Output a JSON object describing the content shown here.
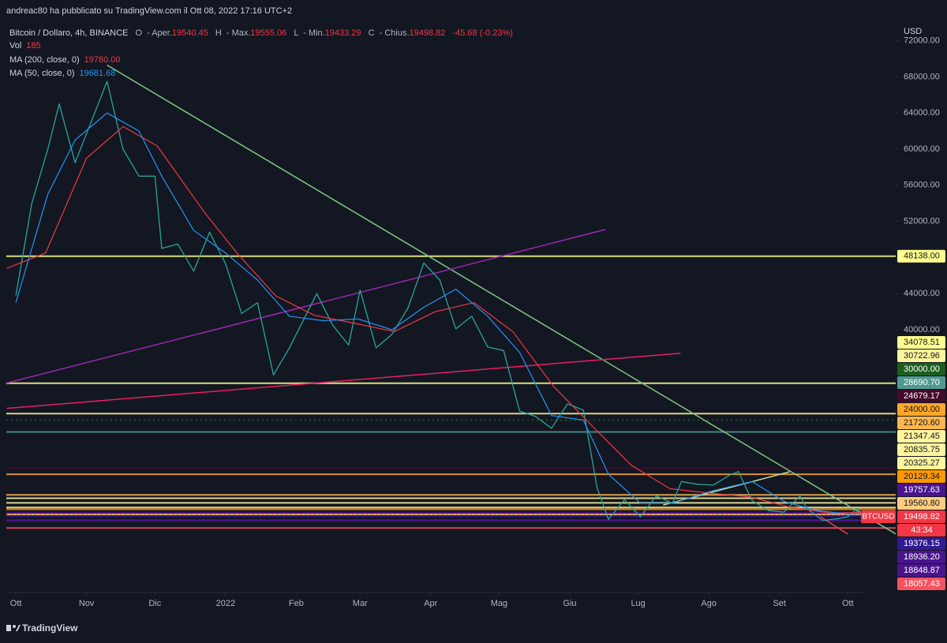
{
  "header": {
    "published": "andreac80 ha pubblicato su TradingView.com il Ott 08, 2022 17:16 UTC+2",
    "symbol": "Bitcoin / Dollaro, 4h, BINANCE",
    "ohlc": [
      {
        "key": "O",
        "name": "- Aper.",
        "value": "19540.45"
      },
      {
        "key": "H",
        "name": "- Max.",
        "value": "19555.06"
      },
      {
        "key": "L",
        "name": "- Min.",
        "value": "19433.29"
      },
      {
        "key": "C",
        "name": "- Chius.",
        "value": "19498.82"
      }
    ],
    "change": "-45.68 (-0.23%)",
    "vol_label": "Vol",
    "vol_value": "185",
    "ma": [
      {
        "name": "MA (200, close, 0)",
        "value": "19780.00",
        "color": "#f23645"
      },
      {
        "name": "MA (50, close, 0)",
        "value": "19681.68",
        "color": "#2196f3"
      }
    ]
  },
  "chart_data": {
    "type": "line",
    "currency": "USD",
    "grid": false,
    "xlim": [
      -4.2,
      386
    ],
    "xticks": [
      {
        "value": 0,
        "label": "Ott"
      },
      {
        "value": 31,
        "label": "Nov"
      },
      {
        "value": 61,
        "label": "Dic"
      },
      {
        "value": 92,
        "label": "2022"
      },
      {
        "value": 123,
        "label": "Feb"
      },
      {
        "value": 151,
        "label": "Mar"
      },
      {
        "value": 182,
        "label": "Apr"
      },
      {
        "value": 212,
        "label": "Mag"
      },
      {
        "value": 243,
        "label": "Giu"
      },
      {
        "value": 273,
        "label": "Lug"
      },
      {
        "value": 304,
        "label": "Ago"
      },
      {
        "value": 335,
        "label": "Set"
      },
      {
        "value": 365,
        "label": "Ott"
      }
    ],
    "ylim": [
      11000,
      73450
    ],
    "yticks": [
      {
        "value": 40000,
        "label": "40000.00"
      },
      {
        "value": 44000,
        "label": "44000.00"
      },
      {
        "value": 48000,
        "label": "48000.00"
      },
      {
        "value": 52000,
        "label": "52000.00"
      },
      {
        "value": 56000,
        "label": "56000.00"
      },
      {
        "value": 60000,
        "label": "60000.00"
      },
      {
        "value": 64000,
        "label": "64000.00"
      },
      {
        "value": 68000,
        "label": "68000.00"
      },
      {
        "value": 72000,
        "label": "72000.00"
      }
    ],
    "series": [
      {
        "name": "BTCUSD",
        "color": "#26a69a",
        "width": 1.3,
        "x": [
          0,
          7,
          14,
          19,
          26,
          33,
          40,
          47,
          54,
          61,
          64,
          71,
          78,
          85,
          92,
          99,
          106,
          113,
          120,
          127,
          132,
          139,
          146,
          151,
          158,
          165,
          172,
          179,
          186,
          193,
          200,
          207,
          214,
          221,
          228,
          235,
          242,
          249,
          255,
          260,
          267,
          274,
          281,
          288,
          292,
          299,
          306,
          313,
          317,
          323,
          330,
          337,
          344,
          347,
          354,
          361,
          365,
          369,
          372
        ],
        "values": [
          43800,
          54000,
          60000,
          65000,
          58500,
          63000,
          67500,
          60000,
          57000,
          57000,
          49000,
          49500,
          46500,
          50800,
          47300,
          41800,
          43000,
          35000,
          38000,
          41500,
          44000,
          40500,
          38300,
          44400,
          38000,
          39500,
          42400,
          47400,
          45500,
          40100,
          41500,
          38100,
          37700,
          31000,
          30400,
          29100,
          31800,
          31100,
          22500,
          19000,
          21200,
          19300,
          21600,
          20800,
          23200,
          22900,
          22800,
          23900,
          24300,
          21100,
          20000,
          19800,
          21600,
          20200,
          18900,
          19100,
          19300,
          20200,
          19498.82
        ]
      },
      {
        "name": "MA (200, close, 0)",
        "color": "#f23645",
        "width": 1.2,
        "x": [
          -4,
          13,
          31,
          47,
          62,
          83,
          97,
          114,
          131,
          149,
          166,
          184,
          201,
          218,
          236,
          253,
          270,
          287,
          305,
          322,
          339,
          357,
          372
        ],
        "values": [
          46800,
          48500,
          59000,
          62500,
          60350,
          52900,
          48500,
          43750,
          41600,
          40700,
          39800,
          42000,
          43000,
          39800,
          33700,
          29300,
          25000,
          22400,
          21900,
          21500,
          20400,
          19700,
          19780
        ]
      },
      {
        "name": "MA (50, close, 0)",
        "color": "#2196f3",
        "width": 1.2,
        "x": [
          0,
          14,
          26,
          40,
          54,
          64,
          78,
          92,
          106,
          120,
          135,
          150,
          165,
          179,
          193,
          207,
          221,
          235,
          249,
          260,
          274,
          288,
          306,
          323,
          337,
          351,
          365,
          372
        ],
        "values": [
          43000,
          55000,
          61000,
          64000,
          62000,
          57000,
          51000,
          48500,
          45500,
          41500,
          41000,
          41200,
          40000,
          42500,
          44500,
          41500,
          37500,
          30500,
          30000,
          24000,
          20800,
          20800,
          22200,
          23200,
          21000,
          20000,
          19600,
          19681.68
        ]
      }
    ],
    "trendlines": [
      {
        "color": "#81c784",
        "points": [
          [
            40,
            69300
          ],
          [
            386,
            17400
          ]
        ]
      },
      {
        "color": "#9c27b0",
        "points": [
          [
            -4,
            34100
          ],
          [
            258.6,
            51100
          ]
        ]
      },
      {
        "color": "#e91e63",
        "points": [
          [
            -4,
            31300
          ],
          [
            291.6,
            37400
          ]
        ]
      },
      {
        "color": "#c5e1a5",
        "points": [
          [
            284,
            20600
          ],
          [
            339.5,
            24280
          ]
        ]
      },
      {
        "color": "#f23645",
        "points": [
          [
            353,
            19300
          ],
          [
            365,
            17375
          ]
        ]
      }
    ],
    "levels": [
      {
        "value": 48138,
        "label": "48138.00",
        "color": "#ffff8d",
        "text_color": "#131722"
      },
      {
        "value": 34078.51,
        "label": "34078.51",
        "color": "#ffff8d",
        "text_color": "#131722"
      },
      {
        "value": 30722.96,
        "label": "30722.96",
        "color": "#fff59d",
        "text_color": "#131722"
      },
      {
        "value": 30000,
        "label": "30000.00",
        "color": "#1b5e20",
        "text_color": "#ffffff",
        "style": "dotted"
      },
      {
        "value": 28690.7,
        "label": "28690.70",
        "color": "#4f9a8f",
        "text_color": "#ffffff"
      },
      {
        "value": 24679.17,
        "label": "24679.17",
        "color": "#420b2a",
        "text_color": "#ffffff"
      },
      {
        "value": 24000,
        "label": "24000.00",
        "color": "#ffa726",
        "text_color": "#131722"
      },
      {
        "value": 21720.6,
        "label": "21720.60",
        "color": "#ffb74d",
        "text_color": "#131722"
      },
      {
        "value": 21347.45,
        "label": "21347.45",
        "color": "#fff59d",
        "text_color": "#131722"
      },
      {
        "value": 20835.75,
        "label": "20835.75",
        "color": "#fff59d",
        "text_color": "#131722"
      },
      {
        "value": 20325.27,
        "label": "20325.27",
        "color": "#fff59d",
        "text_color": "#131722"
      },
      {
        "value": 20129.34,
        "label": "20129.34",
        "color": "#ff9800",
        "text_color": "#131722"
      },
      {
        "value": 19757.63,
        "label": "19757.63",
        "color": "#4a148c",
        "text_color": "#ffffff"
      },
      {
        "value": 19560.8,
        "label": "19560.80",
        "color": "#ffcc80",
        "text_color": "#131722"
      },
      {
        "value": 19498.82,
        "label": "19498.82",
        "color": "#f23645",
        "text_color": "#ffffff",
        "style": "dotted",
        "current": true
      },
      {
        "value": 19376.15,
        "label": "19376.15",
        "color": "#311b92",
        "text_color": "#ffffff"
      },
      {
        "value": 18936.2,
        "label": "18936.20",
        "color": "#4a148c",
        "text_color": "#ffffff"
      },
      {
        "value": 18848.87,
        "label": "18848.87",
        "color": "#4a148c",
        "text_color": "#ffffff"
      },
      {
        "value": 18057.43,
        "label": "18057.43",
        "color": "#f7525f",
        "text_color": "#ffffff"
      }
    ],
    "price_tag": "BTCUSD",
    "countdown": "43:34"
  },
  "footer": {
    "brand": "TradingView"
  }
}
